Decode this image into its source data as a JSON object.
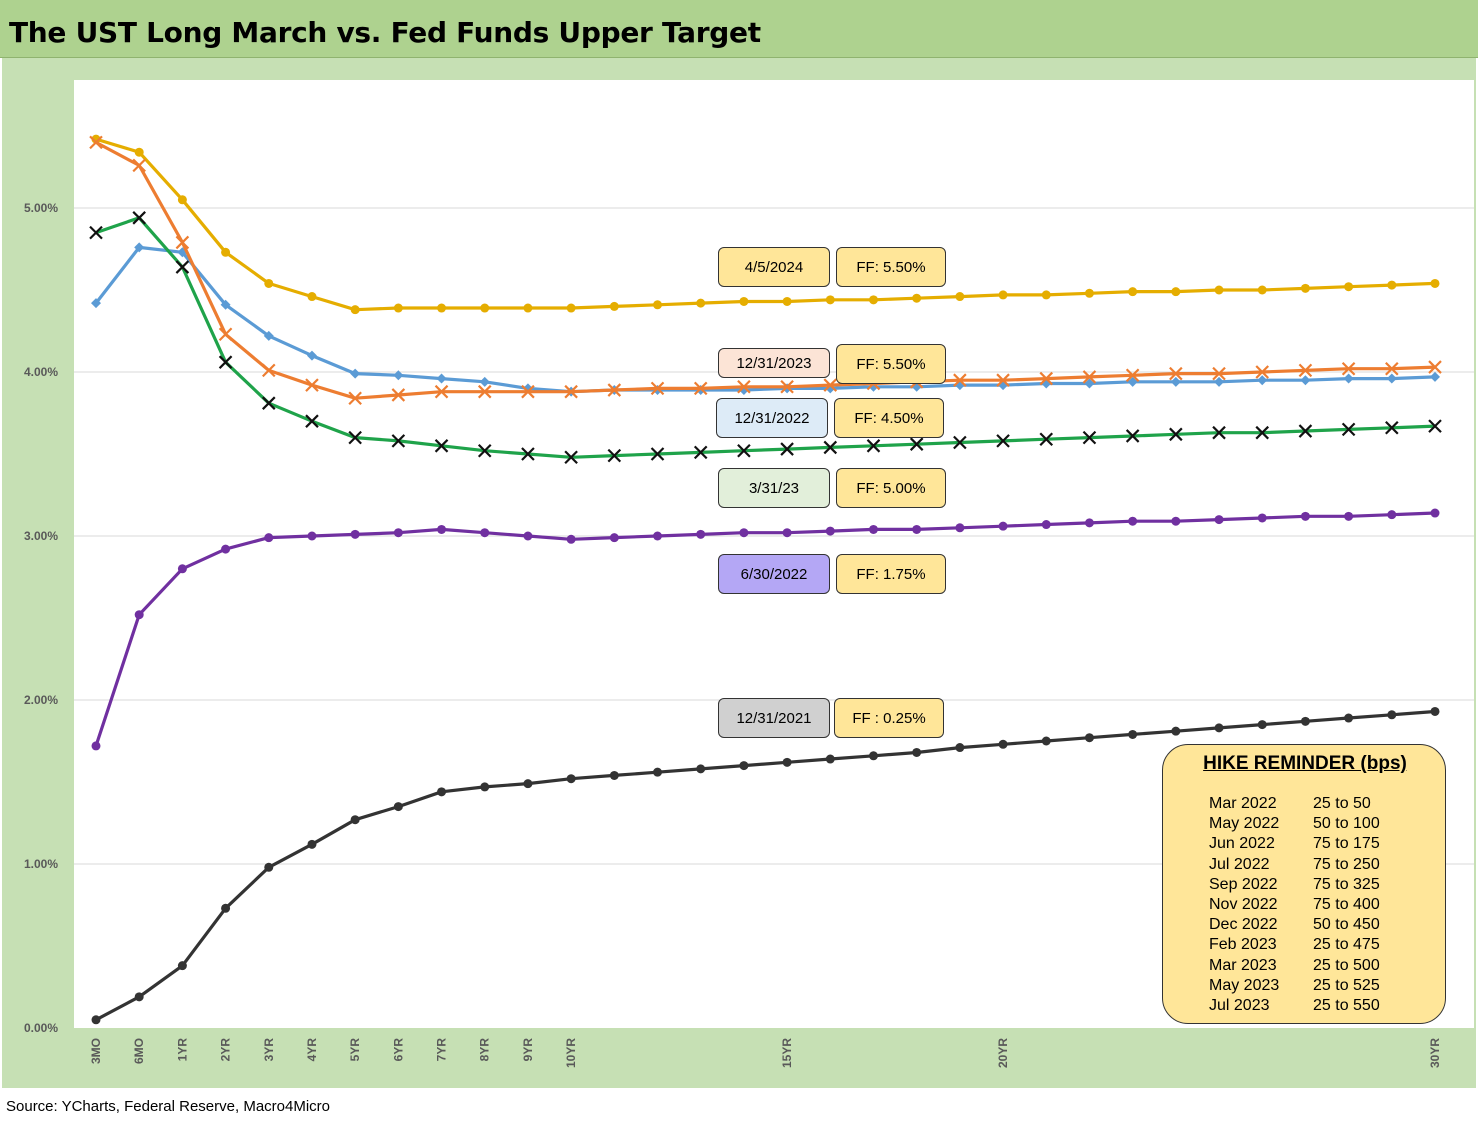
{
  "title": "The UST Long March vs. Fed Funds Upper Target",
  "source": "Source: YCharts, Federal Reserve, Macro4Micro",
  "chart_data": {
    "type": "line",
    "x_ticks": [
      "3MO",
      "6MO",
      "1YR",
      "2YR",
      "3YR",
      "4YR",
      "5YR",
      "6YR",
      "7YR",
      "8YR",
      "9YR",
      "10YR",
      "15YR",
      "20YR",
      "30YR"
    ],
    "y_ticks": [
      "0.00%",
      "1.00%",
      "2.00%",
      "3.00%",
      "4.00%",
      "5.00%"
    ],
    "ylim": [
      0,
      5.6
    ],
    "grid": true,
    "series": [
      {
        "color": "#e5ad00",
        "marker": "circle",
        "values": [
          5.42,
          5.34,
          5.05,
          4.73,
          4.54,
          4.46,
          4.38,
          4.39,
          4.39,
          4.39,
          4.39,
          4.39,
          4.4,
          4.41,
          4.42,
          4.43,
          4.43,
          4.44,
          4.44,
          4.45,
          4.46,
          4.47,
          4.47,
          4.48,
          4.49,
          4.49,
          4.5,
          4.5,
          4.51,
          4.52,
          4.53,
          4.54
        ]
      },
      {
        "color": "#5b9bd5",
        "marker": "diamond",
        "values": [
          4.42,
          4.76,
          4.73,
          4.41,
          4.22,
          4.1,
          3.99,
          3.98,
          3.96,
          3.94,
          3.9,
          3.88,
          3.89,
          3.89,
          3.89,
          3.89,
          3.9,
          3.9,
          3.91,
          3.91,
          3.92,
          3.92,
          3.93,
          3.93,
          3.94,
          3.94,
          3.94,
          3.95,
          3.95,
          3.96,
          3.96,
          3.97
        ]
      },
      {
        "color": "#ed7d31",
        "marker": "x",
        "values": [
          5.4,
          5.26,
          4.79,
          4.23,
          4.01,
          3.92,
          3.84,
          3.86,
          3.88,
          3.88,
          3.88,
          3.88,
          3.89,
          3.9,
          3.9,
          3.91,
          3.91,
          3.92,
          3.93,
          3.94,
          3.95,
          3.95,
          3.96,
          3.97,
          3.98,
          3.99,
          3.99,
          4.0,
          4.01,
          4.02,
          4.02,
          4.03
        ]
      },
      {
        "color": "#1fa34a",
        "marker": "x",
        "values": [
          4.85,
          4.94,
          4.64,
          4.06,
          3.81,
          3.7,
          3.6,
          3.58,
          3.55,
          3.52,
          3.5,
          3.48,
          3.49,
          3.5,
          3.51,
          3.52,
          3.53,
          3.54,
          3.55,
          3.56,
          3.57,
          3.58,
          3.59,
          3.6,
          3.61,
          3.62,
          3.63,
          3.63,
          3.64,
          3.65,
          3.66,
          3.67
        ]
      },
      {
        "color": "#7030a0",
        "marker": "circle",
        "values": [
          1.72,
          2.52,
          2.8,
          2.92,
          2.99,
          3.0,
          3.01,
          3.02,
          3.04,
          3.02,
          3.0,
          2.98,
          2.99,
          3.0,
          3.01,
          3.02,
          3.02,
          3.03,
          3.04,
          3.04,
          3.05,
          3.06,
          3.07,
          3.08,
          3.09,
          3.09,
          3.1,
          3.11,
          3.12,
          3.12,
          3.13,
          3.14
        ]
      },
      {
        "color": "#333333",
        "marker": "circle",
        "values": [
          0.05,
          0.19,
          0.38,
          0.73,
          0.98,
          1.12,
          1.27,
          1.35,
          1.44,
          1.47,
          1.49,
          1.52,
          1.54,
          1.56,
          1.58,
          1.6,
          1.62,
          1.64,
          1.66,
          1.68,
          1.71,
          1.73,
          1.75,
          1.77,
          1.79,
          1.81,
          1.83,
          1.85,
          1.87,
          1.89,
          1.91,
          1.93
        ]
      }
    ],
    "annotations": [
      {
        "date": "4/5/2024",
        "ff": "FF: 5.50%",
        "date_color": "#ffe699"
      },
      {
        "date": "12/31/2023",
        "ff": "FF: 5.50%",
        "date_color": "#fce4d6"
      },
      {
        "date": "12/31/2022",
        "ff": "FF: 4.50%",
        "date_color": "#ddebf7"
      },
      {
        "date": "3/31/23",
        "ff": "FF: 5.00%",
        "date_color": "#e2efda"
      },
      {
        "date": "6/30/2022",
        "ff": "FF: 1.75%",
        "date_color": "#b4a7f5"
      },
      {
        "date": "12/31/2021",
        "ff": "FF : 0.25%",
        "date_color": "#d0d0d0"
      }
    ]
  },
  "hike_reminder": {
    "title": "HIKE REMINDER (bps)",
    "rows": [
      {
        "date": "Mar 2022",
        "value": "25 to 50"
      },
      {
        "date": "May 2022",
        "value": "50 to 100"
      },
      {
        "date": "Jun 2022",
        "value": "75 to 175"
      },
      {
        "date": "Jul 2022",
        "value": "75 to 250"
      },
      {
        "date": "Sep 2022",
        "value": "75 to 325"
      },
      {
        "date": "Nov 2022",
        "value": "75 to 400"
      },
      {
        "date": "Dec 2022",
        "value": "50 to 450"
      },
      {
        "date": "Feb 2023",
        "value": "25 to 475"
      },
      {
        "date": "Mar 2023",
        "value": "25 to 500"
      },
      {
        "date": "May 2023",
        "value": "25 to 525"
      },
      {
        "date": "Jul 2023",
        "value": "25 to 550"
      }
    ]
  }
}
